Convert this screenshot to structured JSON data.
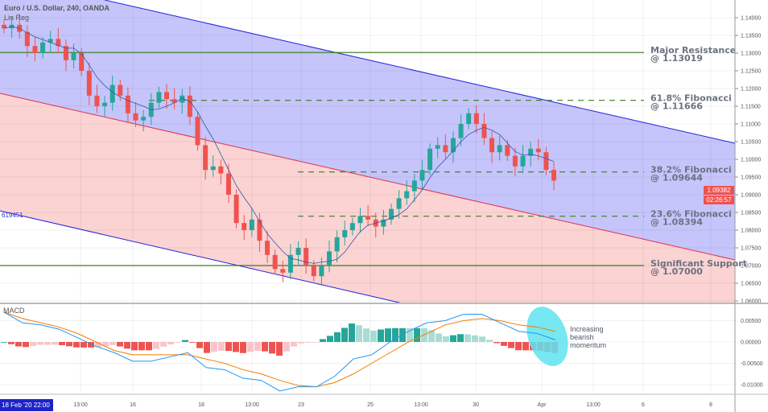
{
  "header": {
    "title": "Euro / U.S. Dollar, 240, OANDA",
    "indicator": "Lin Reg",
    "channel_value": "619451"
  },
  "macd_label": "MACD",
  "colors": {
    "up": "#26a69a",
    "down": "#ef5350",
    "channel_upper_fill": "#c5c5fb",
    "channel_lower_fill": "#fbd3d3",
    "level_line": "#3a7d1e",
    "macd": "#2196f3",
    "signal": "#f57c00",
    "highlight": "#5fe3f0"
  },
  "price_badge": {
    "price": "1.09382",
    "countdown": "02:26:57"
  },
  "cursor_date": "18 Feb '20  22:00",
  "annotation": {
    "line1": "Increasing",
    "line2": "bearish",
    "line3": "momentum"
  },
  "chart_data": [
    {
      "type": "candlestick",
      "title": "Euro / U.S. Dollar, 240, OANDA",
      "y_ticks": [
        "1.14000",
        "1.13500",
        "1.13000",
        "1.12500",
        "1.12000",
        "1.11500",
        "1.11000",
        "1.10500",
        "1.10000",
        "1.09500",
        "1.09000",
        "1.08500",
        "1.08000",
        "1.07500",
        "1.07000",
        "1.06500",
        "1.06000"
      ],
      "ylim": [
        1.06,
        1.14
      ],
      "x_ticks": [
        "13:00",
        "16",
        "18",
        "13:00",
        "23",
        "25",
        "13:00",
        "30",
        "Apr",
        "13:00",
        "6",
        "8"
      ],
      "close_approx": [
        1.137,
        1.138,
        1.136,
        1.132,
        1.13,
        1.133,
        1.134,
        1.132,
        1.128,
        1.13,
        1.125,
        1.118,
        1.115,
        1.116,
        1.121,
        1.118,
        1.113,
        1.111,
        1.112,
        1.116,
        1.119,
        1.117,
        1.116,
        1.118,
        1.112,
        1.104,
        1.097,
        1.098,
        1.096,
        1.09,
        1.082,
        1.08,
        1.083,
        1.077,
        1.073,
        1.069,
        1.068,
        1.073,
        1.075,
        1.07,
        1.067,
        1.07,
        1.074,
        1.078,
        1.08,
        1.082,
        1.084,
        1.083,
        1.081,
        1.083,
        1.086,
        1.089,
        1.091,
        1.094,
        1.097,
        1.103,
        1.104,
        1.102,
        1.106,
        1.11,
        1.113,
        1.11,
        1.106,
        1.102,
        1.104,
        1.101,
        1.098,
        1.101,
        1.103,
        1.102,
        1.097,
        1.094
      ],
      "levels": [
        {
          "name": "Major Resistance",
          "value": 1.13019,
          "label1": "Major Resistance",
          "label2": "@ 1.13019",
          "style": "solid"
        },
        {
          "name": "61.8% Fibonacci",
          "value": 1.11666,
          "label1": "61.8% Fibonacci",
          "label2": "@ 1.11666",
          "style": "dashed"
        },
        {
          "name": "38.2% Fibonacci",
          "value": 1.09644,
          "label1": "38.2% Fibonacci",
          "label2": "@ 1.09644",
          "style": "dashed"
        },
        {
          "name": "23.6% Fibonacci",
          "value": 1.08394,
          "label1": "23.6% Fibonacci",
          "label2": "@ 1.08394",
          "style": "dashed"
        },
        {
          "name": "Significant Support",
          "value": 1.07,
          "label1": "Significant Support",
          "label2": "@ 1.07000",
          "style": "solid"
        }
      ]
    },
    {
      "type": "line",
      "title": "MACD",
      "y_ticks": [
        "0.00500",
        "0.00000",
        "-0.00500",
        "-0.01000"
      ],
      "ylim": [
        -0.0125,
        0.0085
      ],
      "macd": [
        0.007,
        0.0045,
        0.004,
        0.003,
        0.001,
        -0.001,
        -0.0025,
        -0.0045,
        -0.0045,
        -0.0035,
        -0.0025,
        -0.006,
        -0.0065,
        -0.0085,
        -0.009,
        -0.0115,
        -0.0105,
        -0.0105,
        -0.008,
        -0.004,
        -0.003,
        0,
        0.0025,
        0.0045,
        0.005,
        0.0065,
        0.0065,
        0.0045,
        0.0025,
        0.002,
        0.0005
      ],
      "signal": [
        0.007,
        0.0055,
        0.0045,
        0.0035,
        0.002,
        0,
        -0.002,
        -0.003,
        -0.003,
        -0.003,
        -0.003,
        -0.004,
        -0.005,
        -0.0065,
        -0.0075,
        -0.009,
        -0.0102,
        -0.0105,
        -0.0095,
        -0.0075,
        -0.005,
        -0.0025,
        0,
        0.002,
        0.004,
        0.005,
        0.0055,
        0.005,
        0.004,
        0.0035,
        0.0025
      ]
    }
  ]
}
